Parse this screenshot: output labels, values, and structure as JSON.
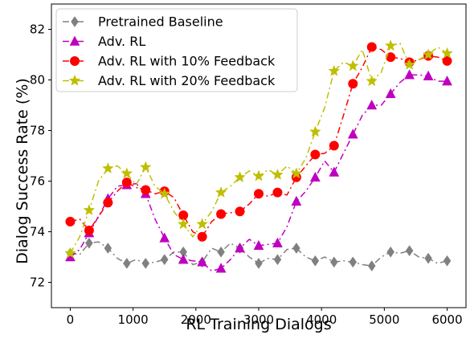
{
  "chart_data": {
    "type": "line",
    "title": "",
    "xlabel": "RL Training Dialogs",
    "ylabel": "Dialog Success Rate (%)",
    "xlim": [
      -300,
      6300
    ],
    "ylim": [
      71,
      83
    ],
    "xticks": [
      0,
      1000,
      2000,
      3000,
      4000,
      5000,
      6000
    ],
    "xtick_labels": [
      "0",
      "1000",
      "2000",
      "3000",
      "4000",
      "5000",
      "6000"
    ],
    "yticks": [
      72,
      74,
      76,
      78,
      80,
      82
    ],
    "ytick_labels": [
      "72",
      "74",
      "76",
      "78",
      "80",
      "82"
    ],
    "grid": false,
    "legend_position": "top-left",
    "x": [
      0,
      300,
      600,
      900,
      1200,
      1500,
      1800,
      2100,
      2400,
      2700,
      3000,
      3300,
      3600,
      3900,
      4200,
      4500,
      4800,
      5100,
      5400,
      5700,
      6000
    ],
    "series": [
      {
        "name": "Pretrained Baseline",
        "color": "#808080",
        "marker": "diamond",
        "dash": "8,4,2,4",
        "values": [
          73.15,
          73.55,
          73.35,
          72.75,
          72.75,
          72.9,
          73.2,
          72.8,
          73.2,
          73.35,
          72.75,
          72.9,
          73.35,
          72.85,
          72.8,
          72.8,
          72.65,
          73.2,
          73.25,
          72.95,
          72.85
        ],
        "curve": [
          [
            0,
            73.15
          ],
          [
            150,
            73.1
          ],
          [
            300,
            73.55
          ],
          [
            450,
            73.6
          ],
          [
            600,
            73.35
          ],
          [
            750,
            72.95
          ],
          [
            900,
            72.75
          ],
          [
            1050,
            72.9
          ],
          [
            1200,
            72.75
          ],
          [
            1350,
            72.8
          ],
          [
            1500,
            72.9
          ],
          [
            1650,
            73.2
          ],
          [
            1800,
            73.2
          ],
          [
            1950,
            72.7
          ],
          [
            2100,
            72.8
          ],
          [
            2250,
            73.35
          ],
          [
            2400,
            73.2
          ],
          [
            2550,
            73.55
          ],
          [
            2700,
            73.35
          ],
          [
            2850,
            73.0
          ],
          [
            3000,
            72.75
          ],
          [
            3150,
            72.95
          ],
          [
            3300,
            72.9
          ],
          [
            3450,
            73.3
          ],
          [
            3600,
            73.35
          ],
          [
            3750,
            73.0
          ],
          [
            3900,
            72.85
          ],
          [
            4050,
            73.0
          ],
          [
            4200,
            72.8
          ],
          [
            4350,
            72.85
          ],
          [
            4500,
            72.8
          ],
          [
            4650,
            72.7
          ],
          [
            4800,
            72.65
          ],
          [
            4950,
            73.0
          ],
          [
            5100,
            73.2
          ],
          [
            5250,
            73.15
          ],
          [
            5400,
            73.25
          ],
          [
            5550,
            73.0
          ],
          [
            5700,
            72.95
          ],
          [
            5850,
            72.75
          ],
          [
            6000,
            72.85
          ]
        ]
      },
      {
        "name": "Adv. RL",
        "color": "#bf00bf",
        "marker": "triangle",
        "dash": "8,4,2,4",
        "values": [
          73.0,
          73.95,
          75.3,
          75.85,
          75.5,
          73.75,
          72.9,
          72.8,
          72.55,
          73.35,
          73.45,
          73.55,
          75.2,
          76.15,
          76.35,
          77.85,
          79.0,
          79.45,
          80.2,
          80.15,
          79.95
        ],
        "curve": [
          [
            0,
            73.0
          ],
          [
            150,
            73.3
          ],
          [
            300,
            73.95
          ],
          [
            450,
            74.6
          ],
          [
            600,
            75.3
          ],
          [
            750,
            75.8
          ],
          [
            900,
            75.85
          ],
          [
            1050,
            75.9
          ],
          [
            1200,
            75.5
          ],
          [
            1350,
            74.5
          ],
          [
            1500,
            73.75
          ],
          [
            1650,
            73.1
          ],
          [
            1800,
            72.9
          ],
          [
            1950,
            72.85
          ],
          [
            2100,
            72.8
          ],
          [
            2250,
            72.45
          ],
          [
            2400,
            72.55
          ],
          [
            2550,
            72.9
          ],
          [
            2700,
            73.35
          ],
          [
            2850,
            73.7
          ],
          [
            3000,
            73.45
          ],
          [
            3150,
            73.5
          ],
          [
            3300,
            73.55
          ],
          [
            3450,
            74.2
          ],
          [
            3600,
            75.2
          ],
          [
            3750,
            75.6
          ],
          [
            3900,
            76.15
          ],
          [
            4050,
            76.8
          ],
          [
            4200,
            76.35
          ],
          [
            4350,
            77.1
          ],
          [
            4500,
            77.85
          ],
          [
            4650,
            78.6
          ],
          [
            4800,
            79.0
          ],
          [
            4950,
            79.0
          ],
          [
            5100,
            79.45
          ],
          [
            5250,
            79.9
          ],
          [
            5400,
            80.2
          ],
          [
            5550,
            80.2
          ],
          [
            5700,
            80.15
          ],
          [
            5850,
            79.95
          ],
          [
            6000,
            79.95
          ]
        ]
      },
      {
        "name": "Adv. RL with 10% Feedback",
        "color": "#ff0000",
        "marker": "circle",
        "dash": "8,4,2,4",
        "values": [
          74.4,
          74.05,
          75.15,
          75.95,
          75.65,
          75.6,
          74.65,
          73.8,
          74.7,
          74.8,
          75.5,
          75.55,
          76.15,
          77.05,
          77.4,
          79.85,
          81.3,
          80.9,
          80.7,
          80.95,
          80.75
        ],
        "curve": [
          [
            0,
            74.4
          ],
          [
            150,
            74.5
          ],
          [
            300,
            74.05
          ],
          [
            450,
            74.6
          ],
          [
            600,
            75.15
          ],
          [
            750,
            75.6
          ],
          [
            900,
            75.95
          ],
          [
            1050,
            75.75
          ],
          [
            1200,
            75.65
          ],
          [
            1350,
            75.5
          ],
          [
            1500,
            75.6
          ],
          [
            1650,
            75.35
          ],
          [
            1800,
            74.65
          ],
          [
            1950,
            74.0
          ],
          [
            2100,
            73.8
          ],
          [
            2250,
            74.4
          ],
          [
            2400,
            74.7
          ],
          [
            2550,
            74.75
          ],
          [
            2700,
            74.8
          ],
          [
            2850,
            75.1
          ],
          [
            3000,
            75.5
          ],
          [
            3150,
            75.4
          ],
          [
            3300,
            75.55
          ],
          [
            3450,
            75.45
          ],
          [
            3600,
            76.15
          ],
          [
            3750,
            76.6
          ],
          [
            3900,
            77.05
          ],
          [
            4050,
            77.1
          ],
          [
            4200,
            77.4
          ],
          [
            4350,
            78.6
          ],
          [
            4500,
            79.85
          ],
          [
            4650,
            80.5
          ],
          [
            4800,
            81.3
          ],
          [
            4950,
            81.2
          ],
          [
            5100,
            80.9
          ],
          [
            5250,
            80.85
          ],
          [
            5400,
            80.7
          ],
          [
            5550,
            80.8
          ],
          [
            5700,
            80.95
          ],
          [
            5850,
            80.9
          ],
          [
            6000,
            80.75
          ]
        ]
      },
      {
        "name": "Adv. RL with 20% Feedback",
        "color": "#bfbf00",
        "marker": "star",
        "dash": "8,4,2,4",
        "values": [
          73.15,
          74.85,
          76.5,
          76.3,
          76.55,
          75.5,
          74.3,
          74.3,
          75.55,
          76.15,
          76.2,
          76.25,
          76.3,
          77.95,
          80.35,
          80.55,
          79.95,
          81.35,
          80.6,
          81.0,
          81.05
        ],
        "curve": [
          [
            0,
            73.15
          ],
          [
            150,
            73.8
          ],
          [
            300,
            74.85
          ],
          [
            450,
            76.0
          ],
          [
            600,
            76.5
          ],
          [
            750,
            76.6
          ],
          [
            900,
            76.3
          ],
          [
            1050,
            75.85
          ],
          [
            1200,
            76.55
          ],
          [
            1350,
            75.8
          ],
          [
            1500,
            75.5
          ],
          [
            1650,
            74.8
          ],
          [
            1800,
            74.3
          ],
          [
            1950,
            73.8
          ],
          [
            2100,
            74.3
          ],
          [
            2250,
            74.8
          ],
          [
            2400,
            75.55
          ],
          [
            2550,
            75.8
          ],
          [
            2700,
            76.15
          ],
          [
            2850,
            76.4
          ],
          [
            3000,
            76.2
          ],
          [
            3150,
            76.45
          ],
          [
            3300,
            76.25
          ],
          [
            3450,
            76.6
          ],
          [
            3600,
            76.3
          ],
          [
            3750,
            76.9
          ],
          [
            3900,
            77.95
          ],
          [
            4050,
            78.9
          ],
          [
            4200,
            80.35
          ],
          [
            4350,
            80.7
          ],
          [
            4500,
            80.55
          ],
          [
            4650,
            81.2
          ],
          [
            4800,
            79.95
          ],
          [
            4950,
            80.3
          ],
          [
            5100,
            81.35
          ],
          [
            5250,
            81.45
          ],
          [
            5400,
            80.6
          ],
          [
            5550,
            80.8
          ],
          [
            5700,
            81.0
          ],
          [
            5850,
            81.3
          ],
          [
            6000,
            81.05
          ]
        ]
      }
    ]
  }
}
